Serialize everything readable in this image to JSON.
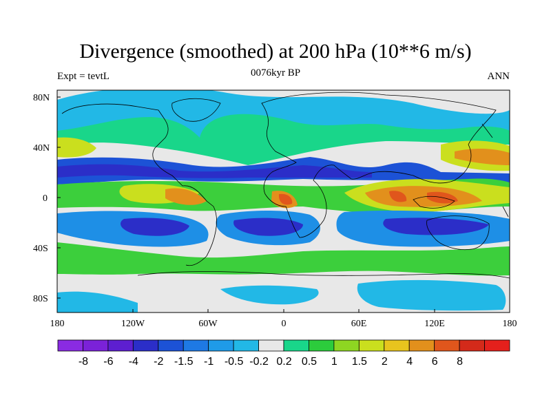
{
  "title": "Divergence (smoothed) at 200 hPa (10**6 m/s)",
  "left_label": "Expt = tevtL",
  "center_label": "0076kyr BP",
  "right_label": "ANN",
  "lat_ticks": [
    "80N",
    "40N",
    "0",
    "40S",
    "80S"
  ],
  "lon_ticks": [
    "180",
    "120W",
    "60W",
    "0",
    "60E",
    "120E",
    "180"
  ],
  "colorbar": {
    "colors": [
      "#8a2be2",
      "#7b22d8",
      "#5d1fd0",
      "#2b2ec8",
      "#1c52d6",
      "#1e79e4",
      "#1f9be8",
      "#22b8e6",
      "#e8e8e8",
      "#19d68a",
      "#2ccc3c",
      "#8ed622",
      "#cadf1e",
      "#e8c41e",
      "#e2901c",
      "#e0561c",
      "#d42a1a",
      "#e4201c"
    ],
    "labels": [
      "-8",
      "-6",
      "-4",
      "-2",
      "-1.5",
      "-1",
      "-0.5",
      "-0.2",
      "0.2",
      "0.5",
      "1",
      "1.5",
      "2",
      "4",
      "6",
      "8"
    ]
  },
  "map_colors": {
    "background": "#e8e8e8",
    "cyan": "#22b8e6",
    "light_blue": "#1e8fe6",
    "blue": "#1c52d6",
    "dark_blue": "#2b2ec8",
    "green_teal": "#19d68a",
    "green": "#3ccf3c",
    "yellow": "#cadf1e",
    "orange": "#e2901c",
    "red": "#e0561c"
  }
}
